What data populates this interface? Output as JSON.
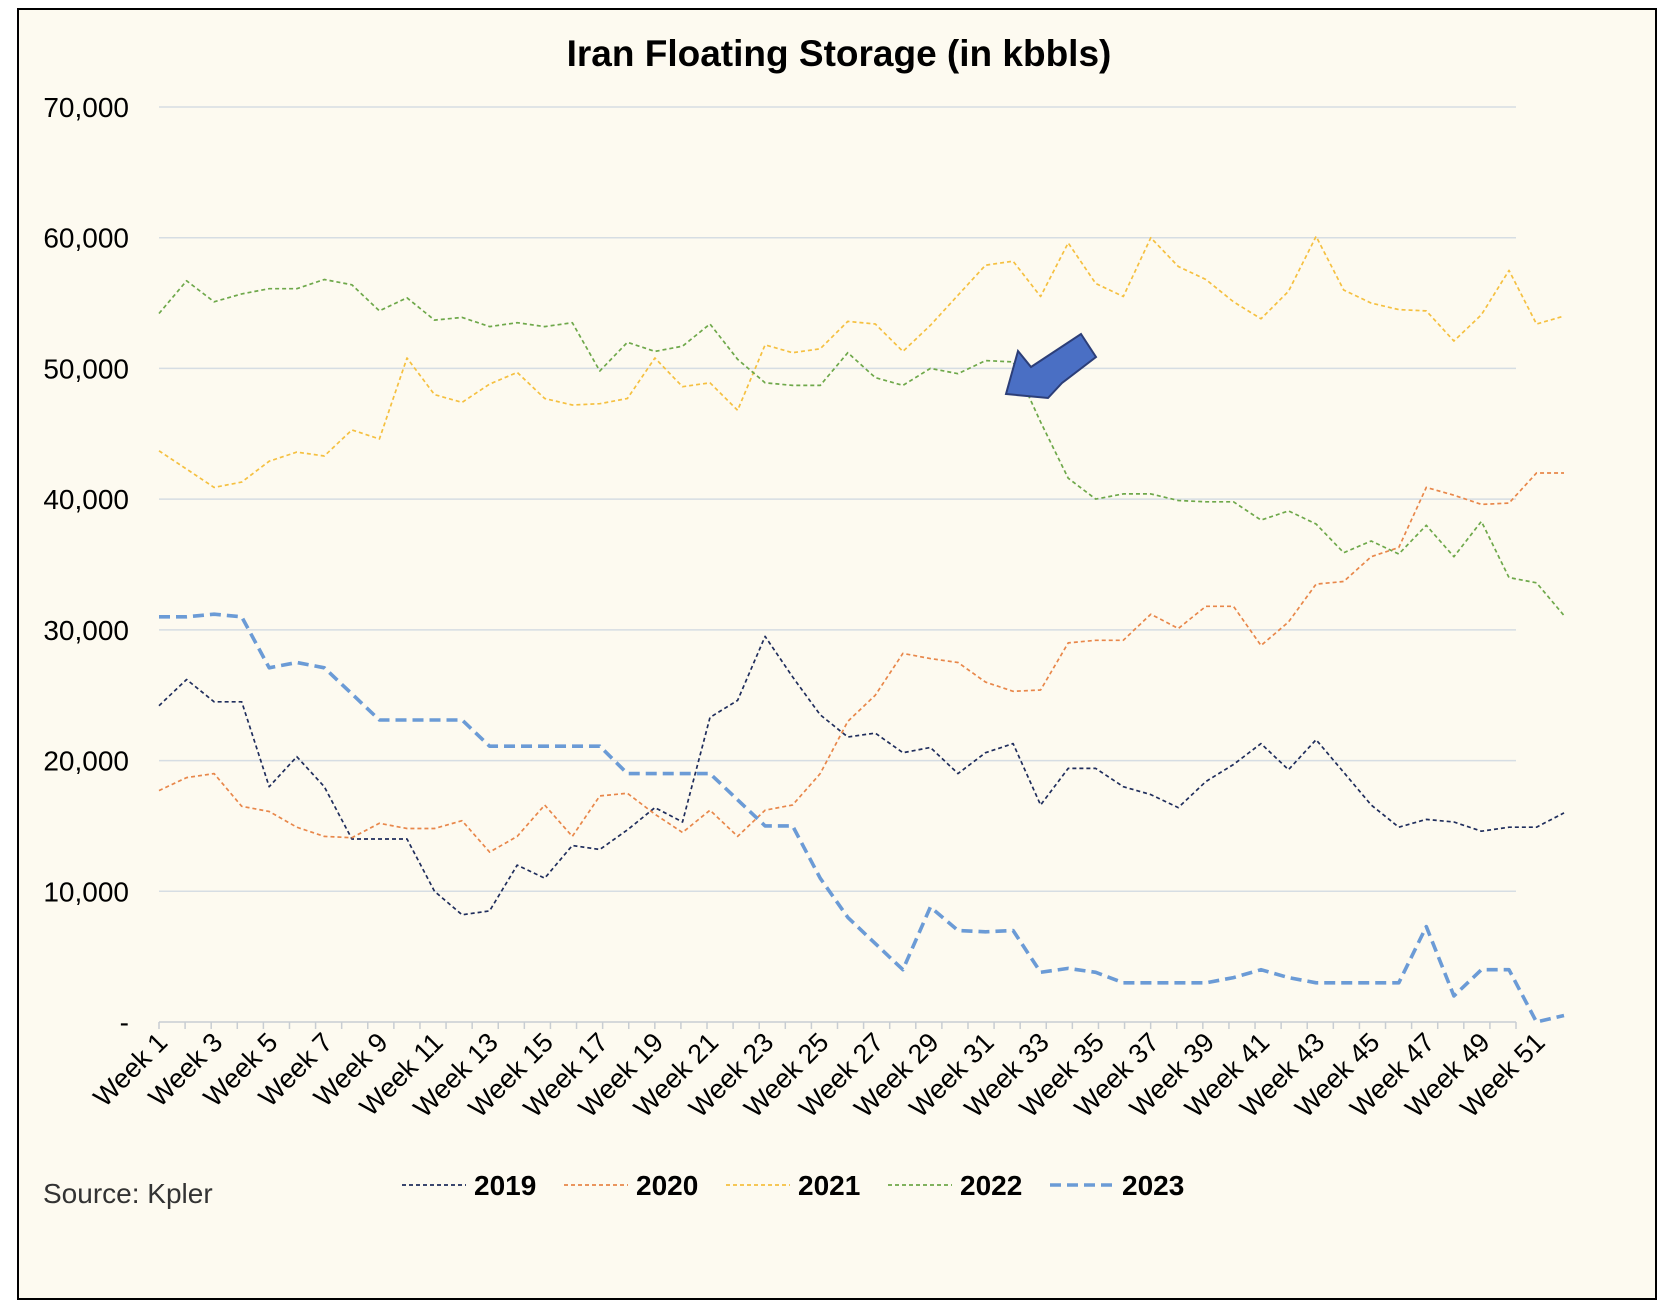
{
  "chart_data": {
    "type": "line",
    "title": "Iran Floating Storage (in kbbls)",
    "source": "Source: Kpler",
    "xlabel": "",
    "ylabel": "",
    "ylim": [
      0,
      70000
    ],
    "yticks": [
      0,
      10000,
      20000,
      30000,
      40000,
      50000,
      60000,
      70000
    ],
    "ytick_labels": [
      "-",
      "10,000",
      "20,000",
      "30,000",
      "40,000",
      "50,000",
      "60,000",
      "70,000"
    ],
    "grid": true,
    "legend_position": "bottom",
    "categories": [
      "Week 1",
      "Week 2",
      "Week 3",
      "Week 4",
      "Week 5",
      "Week 6",
      "Week 7",
      "Week 8",
      "Week 9",
      "Week 10",
      "Week 11",
      "Week 12",
      "Week 13",
      "Week 14",
      "Week 15",
      "Week 16",
      "Week 17",
      "Week 18",
      "Week 19",
      "Week 20",
      "Week 21",
      "Week 22",
      "Week 23",
      "Week 24",
      "Week 25",
      "Week 26",
      "Week 27",
      "Week 28",
      "Week 29",
      "Week 30",
      "Week 31",
      "Week 32",
      "Week 33",
      "Week 34",
      "Week 35",
      "Week 36",
      "Week 37",
      "Week 38",
      "Week 39",
      "Week 40",
      "Week 41",
      "Week 42",
      "Week 43",
      "Week 44",
      "Week 45",
      "Week 46",
      "Week 47",
      "Week 48",
      "Week 49",
      "Week 50",
      "Week 51",
      "Week 52"
    ],
    "x_tick_labels": [
      "Week 1",
      "Week 3",
      "Week 5",
      "Week 7",
      "Week 9",
      "Week 11",
      "Week 13",
      "Week 15",
      "Week 17",
      "Week 19",
      "Week 21",
      "Week 23",
      "Week 25",
      "Week 27",
      "Week 29",
      "Week 31",
      "Week 33",
      "Week 35",
      "Week 37",
      "Week 39",
      "Week 41",
      "Week 43",
      "Week 45",
      "Week 47",
      "Week 49",
      "Week 51"
    ],
    "series": [
      {
        "name": "2019",
        "color": "#1f2d5c",
        "dash": "dashed-thin",
        "values": [
          24200,
          26200,
          24500,
          24500,
          18000,
          20300,
          18000,
          14000,
          14000,
          14000,
          10000,
          8200,
          8500,
          12000,
          11000,
          13500,
          13200,
          14700,
          16400,
          15300,
          23300,
          24600,
          29500,
          26400,
          23500,
          21800,
          22100,
          20600,
          21000,
          19000,
          20600,
          21300,
          16600,
          19400,
          19400,
          18000,
          17400,
          16400,
          18400,
          19700,
          21300,
          19300,
          21600,
          19100,
          16600,
          14900,
          15500,
          15300,
          14600,
          14900,
          14900,
          16000
        ]
      },
      {
        "name": "2020",
        "color": "#e8874a",
        "dash": "dashed-thin",
        "values": [
          17700,
          18700,
          19000,
          16500,
          16100,
          14900,
          14200,
          14100,
          15200,
          14800,
          14800,
          15400,
          13000,
          14200,
          16600,
          14200,
          17300,
          17500,
          15900,
          14500,
          16200,
          14200,
          16200,
          16600,
          19000,
          23000,
          25000,
          28200,
          27800,
          27500,
          26000,
          25300,
          25400,
          29000,
          29200,
          29200,
          31200,
          30100,
          31800,
          31800,
          28800,
          30600,
          33500,
          33700,
          35600,
          36300,
          40900,
          40300,
          39600,
          39700,
          42000,
          42000
        ]
      },
      {
        "name": "2021",
        "color": "#f5c040",
        "dash": "dashed-thin",
        "values": [
          43700,
          42300,
          40900,
          41300,
          42900,
          43600,
          43300,
          45300,
          44600,
          50800,
          48000,
          47400,
          48800,
          49700,
          47700,
          47200,
          47300,
          47700,
          50800,
          48600,
          48900,
          46800,
          51800,
          51200,
          51500,
          53600,
          53400,
          51300,
          53300,
          55600,
          57900,
          58200,
          55500,
          59600,
          56500,
          55500,
          60000,
          57800,
          56800,
          55100,
          53800,
          55900,
          60100,
          56000,
          55000,
          54500,
          54400,
          52100,
          54100,
          57500,
          53400,
          54000
        ]
      },
      {
        "name": "2022",
        "color": "#6ea84a",
        "dash": "dashed-thin",
        "values": [
          54200,
          56700,
          55100,
          55700,
          56100,
          56100,
          56800,
          56400,
          54400,
          55400,
          53700,
          53900,
          53200,
          53500,
          53200,
          53500,
          49800,
          52000,
          51300,
          51700,
          53400,
          50700,
          48900,
          48700,
          48700,
          51200,
          49300,
          48700,
          50000,
          49600,
          50600,
          50500,
          45900,
          41600,
          40000,
          40400,
          40400,
          39900,
          39800,
          39800,
          38400,
          39100,
          38100,
          35900,
          36800,
          35800,
          38000,
          35600,
          38300,
          34000,
          33600,
          31100
        ]
      },
      {
        "name": "2023",
        "color": "#6b9bd6",
        "dash": "dashed-thick",
        "values": [
          31000,
          31000,
          31200,
          31000,
          27100,
          27500,
          27100,
          25100,
          23100,
          23100,
          23100,
          23100,
          21100,
          21100,
          21100,
          21100,
          21100,
          19000,
          19000,
          19000,
          19000,
          17000,
          15000,
          15000,
          11000,
          8000,
          6000,
          4000,
          8800,
          7000,
          6900,
          7000,
          3800,
          4100,
          3800,
          3000,
          3000,
          3000,
          3000,
          3400,
          4000,
          3400,
          3000,
          3000,
          3000,
          3000,
          7300,
          2000,
          4000,
          4000,
          0,
          500
        ]
      }
    ]
  },
  "annotation": {
    "type": "arrow",
    "color": "#4a6fc4",
    "points_to_series": "2022",
    "points_to_category": "Week 33"
  }
}
